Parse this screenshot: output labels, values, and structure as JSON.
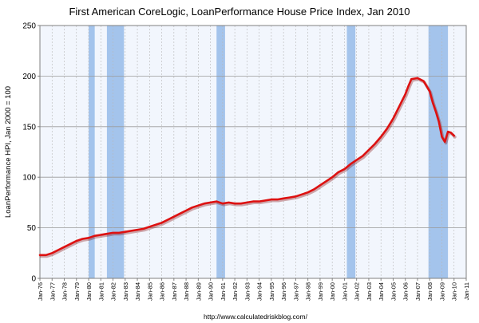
{
  "chart_data": {
    "type": "line",
    "title": "First American CoreLogic, LoanPerformance House Price Index, Jan 2010",
    "ylabel": "LoanPerformance HPI, Jan 2000 = 100",
    "xlabel": "",
    "source": "http://www.calculatedriskblog.com/",
    "ylim": [
      0,
      250
    ],
    "yticks": [
      "0",
      "50",
      "100",
      "150",
      "200",
      "250"
    ],
    "xlim": [
      1976,
      2011
    ],
    "xticks": [
      "Jan-76",
      "Jan-77",
      "Jan-78",
      "Jan-79",
      "Jan-80",
      "Jan-81",
      "Jan-82",
      "Jan-83",
      "Jan-84",
      "Jan-85",
      "Jan-86",
      "Jan-87",
      "Jan-88",
      "Jan-89",
      "Jan-90",
      "Jan-91",
      "Jan-92",
      "Jan-93",
      "Jan-94",
      "Jan-95",
      "Jan-96",
      "Jan-97",
      "Jan-98",
      "Jan-99",
      "Jan-00",
      "Jan-01",
      "Jan-02",
      "Jan-03",
      "Jan-04",
      "Jan-05",
      "Jan-06",
      "Jan-07",
      "Jan-08",
      "Jan-09",
      "Jan-10",
      "Jan-11"
    ],
    "grid": true,
    "recessions": [
      [
        1980.0,
        1980.5
      ],
      [
        1981.5,
        1982.9
      ],
      [
        1990.5,
        1991.2
      ],
      [
        2001.2,
        2001.9
      ],
      [
        2007.9,
        2009.5
      ]
    ],
    "series": [
      {
        "name": "",
        "color": "#dd1111",
        "x": [
          1976.0,
          1976.5,
          1977.0,
          1977.5,
          1978.0,
          1978.5,
          1979.0,
          1979.5,
          1980.0,
          1980.5,
          1981.0,
          1981.5,
          1982.0,
          1982.5,
          1983.0,
          1983.5,
          1984.0,
          1984.5,
          1985.0,
          1985.5,
          1986.0,
          1986.5,
          1987.0,
          1987.5,
          1988.0,
          1988.5,
          1989.0,
          1989.5,
          1990.0,
          1990.5,
          1991.0,
          1991.5,
          1992.0,
          1992.5,
          1993.0,
          1993.5,
          1994.0,
          1994.5,
          1995.0,
          1995.5,
          1996.0,
          1996.5,
          1997.0,
          1997.5,
          1998.0,
          1998.5,
          1999.0,
          1999.5,
          2000.0,
          2000.5,
          2001.0,
          2001.5,
          2002.0,
          2002.5,
          2003.0,
          2003.5,
          2004.0,
          2004.5,
          2005.0,
          2005.5,
          2006.0,
          2006.25,
          2006.5,
          2007.0,
          2007.5,
          2008.0,
          2008.25,
          2008.5,
          2008.75,
          2009.0,
          2009.25,
          2009.5,
          2009.75,
          2010.0
        ],
        "y": [
          23,
          23,
          25,
          28,
          31,
          34,
          37,
          39,
          40,
          42,
          43,
          44,
          45,
          45,
          46,
          47,
          48,
          49,
          51,
          53,
          55,
          58,
          61,
          64,
          67,
          70,
          72,
          74,
          75,
          76,
          74,
          75,
          74,
          74,
          75,
          76,
          76,
          77,
          78,
          78,
          79,
          80,
          81,
          83,
          85,
          88,
          92,
          96,
          100,
          105,
          108,
          113,
          117,
          121,
          127,
          133,
          140,
          148,
          158,
          170,
          182,
          190,
          197,
          198,
          195,
          185,
          174,
          165,
          155,
          140,
          135,
          145,
          144,
          141
        ]
      }
    ]
  }
}
